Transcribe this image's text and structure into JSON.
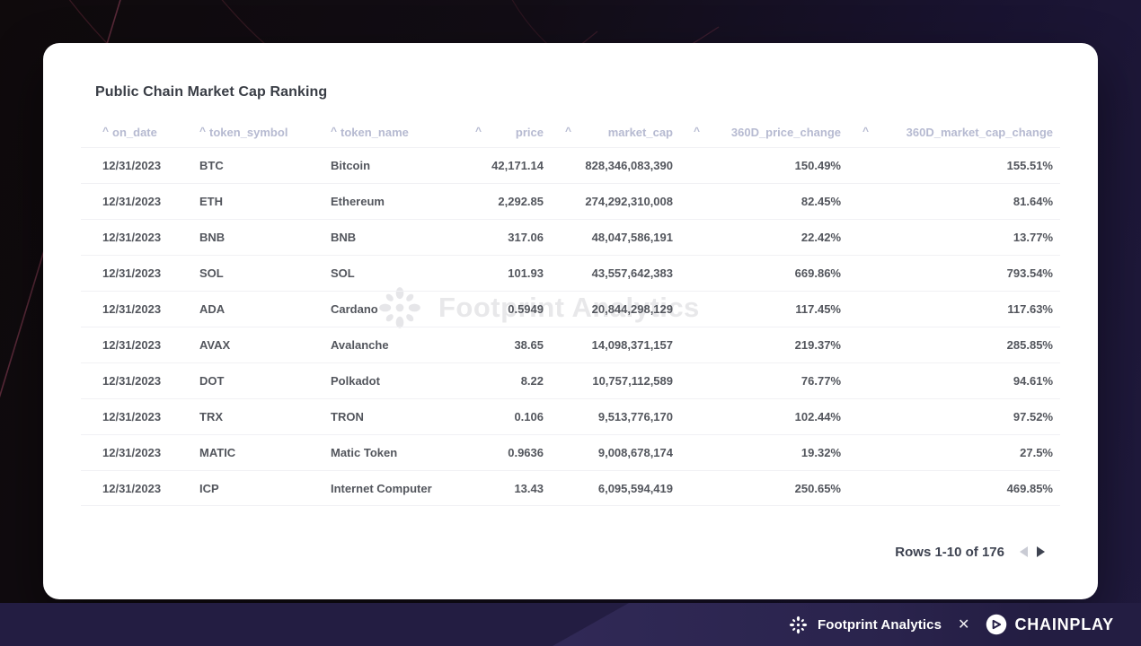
{
  "card": {
    "title": "Public Chain Market Cap Ranking",
    "columns": [
      {
        "key": "on_date",
        "label": "on_date",
        "align": "left"
      },
      {
        "key": "token_symbol",
        "label": "token_symbol",
        "align": "left"
      },
      {
        "key": "token_name",
        "label": "token_name",
        "align": "left"
      },
      {
        "key": "price",
        "label": "price",
        "align": "right"
      },
      {
        "key": "market_cap",
        "label": "market_cap",
        "align": "right"
      },
      {
        "key": "360D_price_change",
        "label": "360D_price_change",
        "align": "right"
      },
      {
        "key": "360D_market_cap_change",
        "label": "360D_market_cap_change",
        "align": "right"
      }
    ],
    "rows": [
      [
        "12/31/2023",
        "BTC",
        "Bitcoin",
        "42,171.14",
        "828,346,083,390",
        "150.49%",
        "155.51%"
      ],
      [
        "12/31/2023",
        "ETH",
        "Ethereum",
        "2,292.85",
        "274,292,310,008",
        "82.45%",
        "81.64%"
      ],
      [
        "12/31/2023",
        "BNB",
        "BNB",
        "317.06",
        "48,047,586,191",
        "22.42%",
        "13.77%"
      ],
      [
        "12/31/2023",
        "SOL",
        "SOL",
        "101.93",
        "43,557,642,383",
        "669.86%",
        "793.54%"
      ],
      [
        "12/31/2023",
        "ADA",
        "Cardano",
        "0.5949",
        "20,844,298,129",
        "117.45%",
        "117.63%"
      ],
      [
        "12/31/2023",
        "AVAX",
        "Avalanche",
        "38.65",
        "14,098,371,157",
        "219.37%",
        "285.85%"
      ],
      [
        "12/31/2023",
        "DOT",
        "Polkadot",
        "8.22",
        "10,757,112,589",
        "76.77%",
        "94.61%"
      ],
      [
        "12/31/2023",
        "TRX",
        "TRON",
        "0.106",
        "9,513,776,170",
        "102.44%",
        "97.52%"
      ],
      [
        "12/31/2023",
        "MATIC",
        "Matic Token",
        "0.9636",
        "9,008,678,174",
        "19.32%",
        "27.5%"
      ],
      [
        "12/31/2023",
        "ICP",
        "Internet Computer",
        "13.43",
        "6,095,594,419",
        "250.65%",
        "469.85%"
      ]
    ],
    "icons": {
      "sort": "^"
    },
    "pagination": {
      "label": "Rows 1-10 of 176"
    }
  },
  "watermark": {
    "text": "Footprint Analytics"
  },
  "footer": {
    "footprint_label": "Footprint Analytics",
    "separator": "✕",
    "chainplay_label": "CHAINPLAY"
  },
  "colors": {
    "header_text": "#b6bad1",
    "row_text": "#53565d",
    "pagination_text": "#3d4250",
    "disabled_arrow": "#c9cbd4",
    "footer_bg": "#231d42",
    "watermark": "#e8e8ea"
  }
}
